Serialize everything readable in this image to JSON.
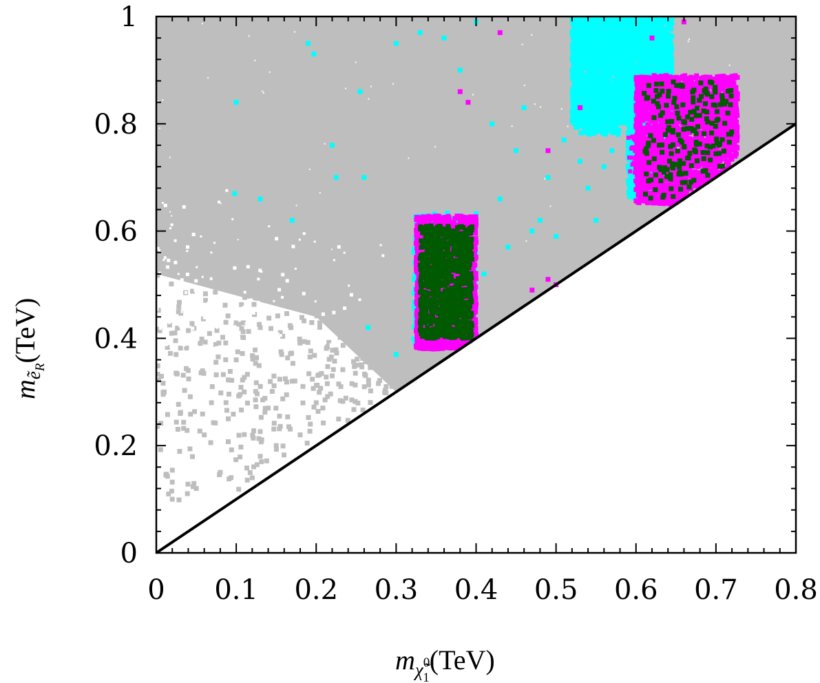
{
  "chart_data": {
    "type": "scatter",
    "title": "",
    "xlabel": {
      "symbol": "m",
      "subscript": "χ̃",
      "sub_sup": "0",
      "sub_sub": "1",
      "unit": "(TeV)"
    },
    "ylabel": {
      "symbol": "m",
      "subscript": "ẽ",
      "sub_sub": "R",
      "unit": "(TeV)"
    },
    "xlim": [
      0,
      0.8
    ],
    "ylim": [
      0,
      1
    ],
    "xticks": [
      "0",
      "0.1",
      "0.2",
      "0.3",
      "0.4",
      "0.5",
      "0.6",
      "0.7",
      "0.8"
    ],
    "yticks": [
      "0",
      "0.2",
      "0.4",
      "0.6",
      "0.8",
      "1"
    ],
    "grid": false,
    "legend": "none",
    "colors": {
      "grey": "#bebebe",
      "cyan": "#00ffff",
      "magenta": "#ff00ff",
      "green": "#005a00",
      "line": "#000000"
    },
    "reference_line": {
      "name": "m_eR = m_chi",
      "x": [
        0,
        0.8
      ],
      "y": [
        0,
        0.8
      ]
    },
    "series": [
      {
        "name": "grey-scan",
        "color": "#bebebe",
        "regions": [
          {
            "description": "dense region above y = x",
            "x": [
              0,
              0.8
            ],
            "y": [
              0.4,
              1
            ]
          },
          {
            "description": "sparse region near diagonal",
            "x": [
              0,
              0.3
            ],
            "y": [
              0.1,
              0.4
            ]
          }
        ],
        "points": [
          [
            0.02,
            0.1
          ],
          [
            0.05,
            0.12
          ],
          [
            0.08,
            0.15
          ],
          [
            0.12,
            0.14
          ],
          [
            0.13,
            0.18
          ],
          [
            0.15,
            0.2
          ],
          [
            0.18,
            0.22
          ],
          [
            0.01,
            0.3
          ],
          [
            0.03,
            0.26
          ],
          [
            0.06,
            0.22
          ],
          [
            0.09,
            0.25
          ],
          [
            0.11,
            0.3
          ],
          [
            0.14,
            0.27
          ],
          [
            0.17,
            0.32
          ],
          [
            0.2,
            0.28
          ],
          [
            0.22,
            0.33
          ],
          [
            0.25,
            0.35
          ],
          [
            0.04,
            0.34
          ],
          [
            0.07,
            0.31
          ],
          [
            0.1,
            0.36
          ]
        ]
      },
      {
        "name": "cyan",
        "color": "#00ffff",
        "regions": [
          {
            "x": [
              0.52,
              0.645
            ],
            "y": [
              0.8,
              1.0
            ]
          },
          {
            "x": [
              0.59,
              0.63
            ],
            "y": [
              0.66,
              0.82
            ]
          },
          {
            "x": [
              0.325,
              0.4
            ],
            "y": [
              0.38,
              0.63
            ]
          }
        ],
        "points": [
          [
            0.1,
            0.84
          ],
          [
            0.098,
            0.67
          ],
          [
            0.19,
            0.95
          ],
          [
            0.197,
            0.93
          ],
          [
            0.22,
            0.76
          ],
          [
            0.225,
            0.7
          ],
          [
            0.26,
            0.7
          ],
          [
            0.255,
            0.86
          ],
          [
            0.3,
            0.95
          ],
          [
            0.33,
            0.97
          ],
          [
            0.36,
            0.96
          ],
          [
            0.38,
            0.9
          ],
          [
            0.42,
            0.8
          ],
          [
            0.43,
            0.66
          ],
          [
            0.44,
            0.57
          ],
          [
            0.45,
            0.75
          ],
          [
            0.46,
            0.83
          ],
          [
            0.47,
            0.6
          ],
          [
            0.48,
            0.62
          ],
          [
            0.49,
            0.7
          ],
          [
            0.5,
            0.59
          ],
          [
            0.51,
            0.77
          ],
          [
            0.53,
            0.73
          ],
          [
            0.54,
            0.68
          ],
          [
            0.55,
            0.62
          ],
          [
            0.56,
            0.72
          ],
          [
            0.57,
            0.75
          ],
          [
            0.41,
            0.52
          ],
          [
            0.395,
            0.6
          ],
          [
            0.3,
            0.37
          ],
          [
            0.265,
            0.42
          ],
          [
            0.17,
            0.62
          ],
          [
            0.13,
            0.66
          ],
          [
            0.52,
            0.97
          ],
          [
            0.6,
            0.99
          ],
          [
            0.4,
            0.99
          ],
          [
            0.6,
            0.7
          ],
          [
            0.62,
            0.66
          ],
          [
            0.59,
            0.74
          ]
        ]
      },
      {
        "name": "magenta",
        "color": "#ff00ff",
        "regions": [
          {
            "x": [
              0.325,
              0.4
            ],
            "y": [
              0.38,
              0.63
            ]
          },
          {
            "x": [
              0.6,
              0.727
            ],
            "y": [
              0.65,
              0.89
            ]
          }
        ],
        "points": [
          [
            0.38,
            0.86
          ],
          [
            0.39,
            0.84
          ],
          [
            0.43,
            0.97
          ],
          [
            0.49,
            0.75
          ],
          [
            0.5,
            0.5
          ],
          [
            0.49,
            0.51
          ],
          [
            0.53,
            0.83
          ],
          [
            0.61,
            0.73
          ],
          [
            0.62,
            0.96
          ],
          [
            0.66,
            0.99
          ],
          [
            0.47,
            0.49
          ]
        ]
      },
      {
        "name": "green",
        "color": "#005a00",
        "regions": [
          {
            "x": [
              0.325,
              0.4
            ],
            "y": [
              0.4,
              0.61
            ]
          },
          {
            "x": [
              0.6,
              0.725
            ],
            "y": [
              0.66,
              0.88
            ]
          }
        ],
        "points": []
      }
    ]
  }
}
